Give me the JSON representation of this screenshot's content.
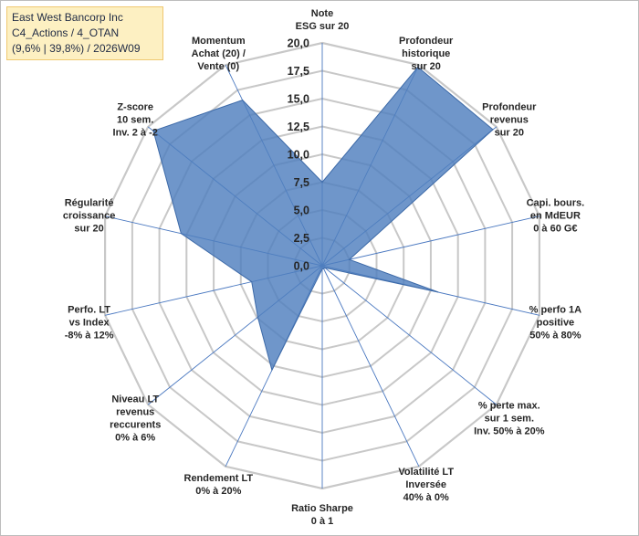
{
  "title_box": {
    "line1": "East West Bancorp Inc",
    "line2": "C4_Actions / 4_OTAN",
    "line3": "(9,6% | 39,8%) / 2026W09"
  },
  "colors": {
    "fill": "#4f7fbe",
    "stroke": "#3d6aa8",
    "grid": "#c8c8c8",
    "spoke": "#4a78c0",
    "title_bg": "#fdf0c2"
  },
  "chart_data": {
    "type": "radar",
    "rmin": 0,
    "rmax": 20,
    "tick_step": 2.5,
    "ticks": [
      "0,0",
      "2,5",
      "5,0",
      "7,5",
      "10,0",
      "12,5",
      "15,0",
      "17,5",
      "20,0"
    ],
    "axes": [
      {
        "label": [
          "Note",
          "ESG sur 20"
        ],
        "value": 7.5
      },
      {
        "label": [
          "Profondeur",
          "historique",
          "sur 20"
        ],
        "value": 19.8
      },
      {
        "label": [
          "Profondeur",
          "revenus",
          "sur 20"
        ],
        "value": 19.6
      },
      {
        "label": [
          "Capi. bours.",
          "en MdEUR",
          "0 à 60 G€"
        ],
        "value": 2.5
      },
      {
        "label": [
          "% perfo 1A",
          "positive",
          "50% à 80%"
        ],
        "value": 10.7
      },
      {
        "label": [
          "% perte max.",
          "sur 1 sem.",
          "Inv. 50% à 20%"
        ],
        "value": 0.3
      },
      {
        "label": [
          "Volatilité LT",
          "Inversée",
          "40% à 0%"
        ],
        "value": 0.3
      },
      {
        "label": [
          "Ratio Sharpe",
          "0 à 1"
        ],
        "value": 0.3
      },
      {
        "label": [
          "Rendement LT",
          "0% à 20%"
        ],
        "value": 10.4
      },
      {
        "label": [
          "Niveau LT",
          "revenus",
          "reccurents",
          "0% à 6%"
        ],
        "value": 7.4
      },
      {
        "label": [
          "Perfo. LT",
          "vs Index",
          "-8% à 12%"
        ],
        "value": 6.5
      },
      {
        "label": [
          "Régularité",
          "croissance",
          "sur 20"
        ],
        "value": 13.0
      },
      {
        "label": [
          "Z-score",
          "10 sem.",
          "Inv. 2 à -2"
        ],
        "value": 19.4
      },
      {
        "label": [
          "Momentum",
          "Achat (20) /",
          "Vente (0)"
        ],
        "value": 16.5
      }
    ]
  }
}
